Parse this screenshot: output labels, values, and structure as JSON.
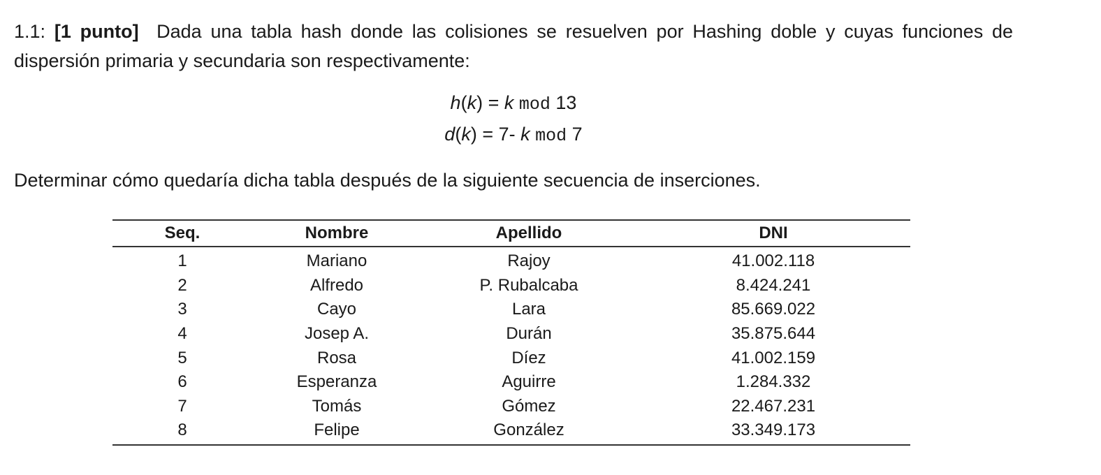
{
  "question": {
    "number": "1.1:",
    "points": "[1 punto]",
    "text": "Dada una tabla hash donde las colisiones se resuelven por Hashing doble y cuyas funciones de dispersión primaria y secundaria son respectivamente:"
  },
  "formulas": {
    "primary": {
      "fn": "h",
      "var": "k",
      "eq": " = ",
      "lhs_var": "k",
      "op": "mod",
      "rhs": "13"
    },
    "secondary": {
      "fn": "d",
      "var": "k",
      "eq": " = 7- ",
      "lhs_var": "k",
      "op": "mod",
      "rhs": "7"
    }
  },
  "instruction": "Determinar cómo quedaría dicha tabla después de la siguiente secuencia de inserciones.",
  "table": {
    "headers": [
      "Seq.",
      "Nombre",
      "Apellido",
      "DNI"
    ],
    "rows": [
      [
        "1",
        "Mariano",
        "Rajoy",
        "41.002.118"
      ],
      [
        "2",
        "Alfredo",
        "P. Rubalcaba",
        "8.424.241"
      ],
      [
        "3",
        "Cayo",
        "Lara",
        "85.669.022"
      ],
      [
        "4",
        "Josep A.",
        "Durán",
        "35.875.644"
      ],
      [
        "5",
        "Rosa",
        "Díez",
        "41.002.159"
      ],
      [
        "6",
        "Esperanza",
        "Aguirre",
        "1.284.332"
      ],
      [
        "7",
        "Tomás",
        "Gómez",
        "22.467.231"
      ],
      [
        "8",
        "Felipe",
        "González",
        "33.349.173"
      ]
    ]
  }
}
